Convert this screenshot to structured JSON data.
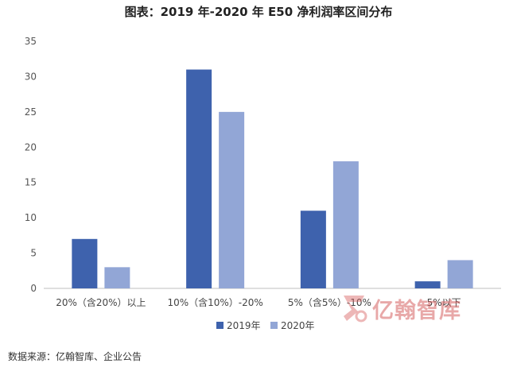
{
  "title": "图表：2019 年-2020 年 E50 净利润率区间分布",
  "source_note": "数据来源：亿翰智库、企业公告",
  "watermark": {
    "text": "亿翰智库",
    "color": "#d66060",
    "icon": "yihan-logo-icon"
  },
  "colors": {
    "series_2019": "#3e62ad",
    "series_2020": "#92a6d6",
    "axis": "#bfbfbf"
  },
  "chart_data": {
    "type": "bar",
    "title": "图表：2019 年-2020 年 E50 净利润率区间分布",
    "xlabel": "",
    "ylabel": "",
    "categories": [
      "20%（含20%）以上",
      "10%（含10%）-20%",
      "5%（含5%）-10%",
      "5%以下"
    ],
    "series": [
      {
        "name": "2019年",
        "values": [
          7,
          31,
          11,
          1
        ]
      },
      {
        "name": "2020年",
        "values": [
          3,
          25,
          18,
          4
        ]
      }
    ],
    "ylim": [
      0,
      35
    ],
    "yticks": [
      0,
      5,
      10,
      15,
      20,
      25,
      30,
      35
    ],
    "grid": false,
    "legend": "bottom-center"
  }
}
